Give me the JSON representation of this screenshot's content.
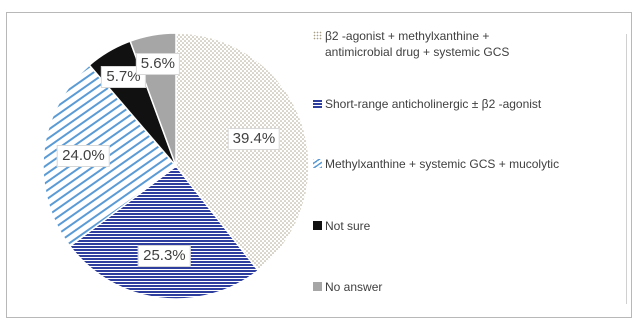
{
  "chart_data": {
    "type": "pie",
    "title": "",
    "slices": [
      {
        "label": "β2 -agonist + methylxanthine +\nantimicrobial drug + systemic GCS",
        "value": 39.4,
        "value_label": "39.4%",
        "pattern": "dots",
        "color": "#d9d0b8"
      },
      {
        "label": "Short-range anticholinergic ± β2 -agonist",
        "value": 25.3,
        "value_label": "25.3%",
        "pattern": "horizontal-lines",
        "color": "#2e3e9e"
      },
      {
        "label": "Methylxanthine + systemic GCS + mucolytic",
        "value": 24.0,
        "value_label": "24.0%",
        "pattern": "diagonal-lines",
        "color": "#5b9bd5"
      },
      {
        "label": "Not sure",
        "value": 5.7,
        "value_label": "5.7%",
        "pattern": "solid",
        "color": "#111111"
      },
      {
        "label": "No answer",
        "value": 5.6,
        "value_label": "5.6%",
        "pattern": "solid",
        "color": "#a6a6a6"
      }
    ],
    "start_angle_deg": 0,
    "direction": "clockwise",
    "legend_position": "right"
  }
}
